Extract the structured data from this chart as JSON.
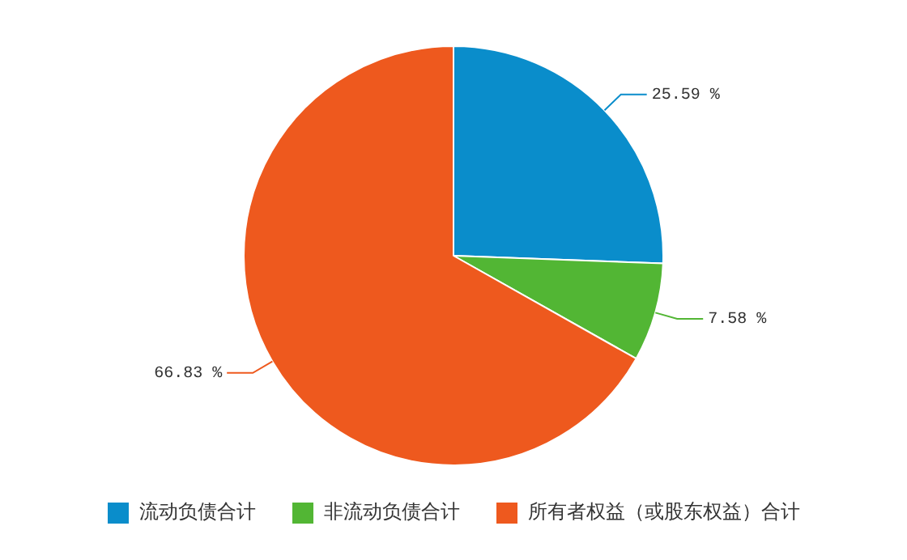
{
  "chart_data": {
    "type": "pie",
    "categories": [
      "流动负债合计",
      "非流动负债合计",
      "所有者权益（或股东权益）合计"
    ],
    "values": [
      25.59,
      7.58,
      66.83
    ],
    "colors": [
      "#0a8dcb",
      "#52b634",
      "#ee591e"
    ],
    "value_labels": [
      "25.59 %",
      "7.58 %",
      "66.83 %"
    ],
    "legend": "bottom"
  }
}
